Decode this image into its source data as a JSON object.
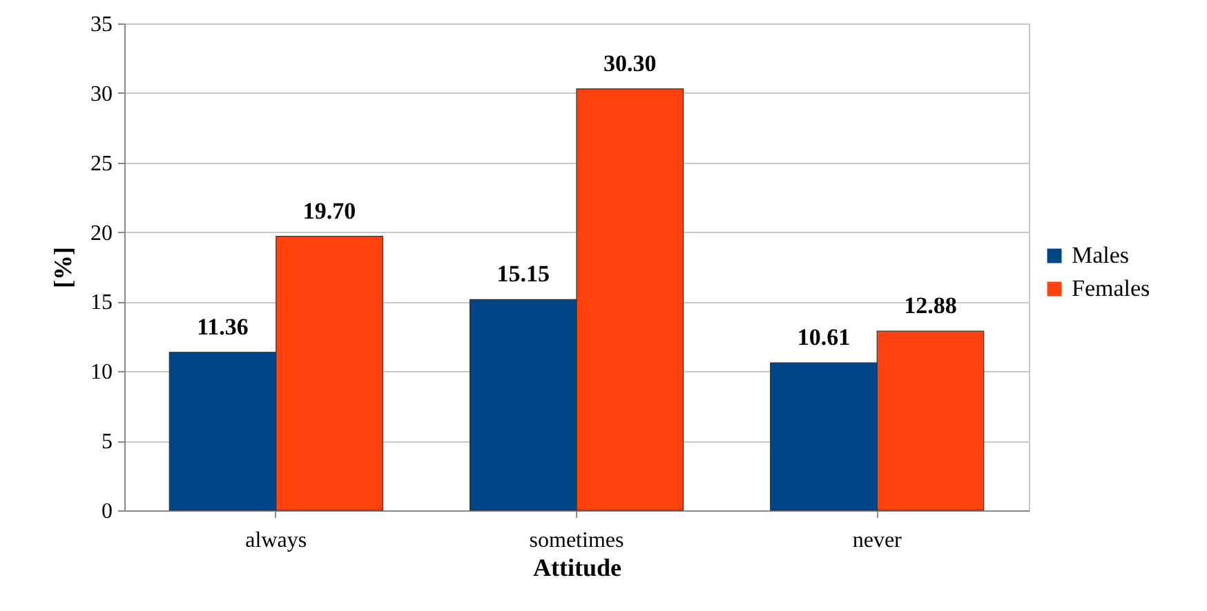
{
  "chart_data": {
    "type": "bar",
    "xlabel": "Attitude",
    "ylabel": "[%]",
    "categories": [
      "always",
      "sometimes",
      "never"
    ],
    "series": [
      {
        "name": "Males",
        "color": "#004586",
        "values": [
          11.36,
          15.15,
          10.61
        ],
        "value_labels": [
          "11.36",
          "15.15",
          "10.61"
        ]
      },
      {
        "name": "Females",
        "color": "#ff420e",
        "values": [
          19.7,
          30.3,
          12.88
        ],
        "value_labels": [
          "19.70",
          "30.30",
          "12.88"
        ]
      }
    ],
    "ylim": [
      0,
      35
    ],
    "yticks": [
      0,
      5,
      10,
      15,
      20,
      25,
      30,
      35
    ],
    "grid": "y",
    "legend": "right"
  }
}
